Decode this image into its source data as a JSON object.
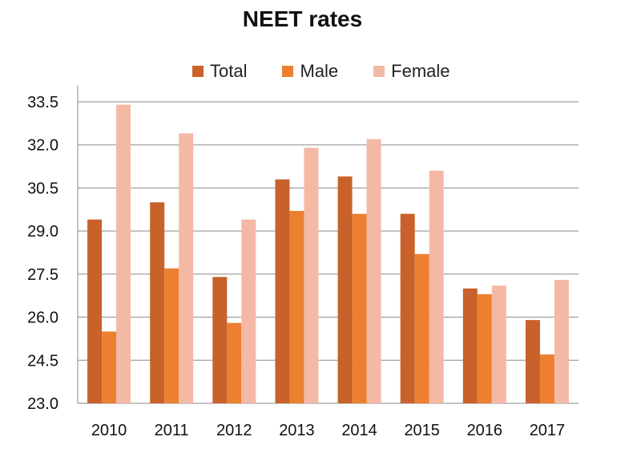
{
  "chart_data": {
    "type": "bar",
    "title": "NEET rates",
    "xlabel": "",
    "ylabel": "",
    "categories": [
      "2010",
      "2011",
      "2012",
      "2013",
      "2014",
      "2015",
      "2016",
      "2017"
    ],
    "series": [
      {
        "name": "Total",
        "color": "#c8622a",
        "values": [
          29.4,
          30.0,
          27.4,
          30.8,
          30.9,
          29.6,
          27.0,
          25.9
        ]
      },
      {
        "name": "Male",
        "color": "#ec8030",
        "values": [
          25.5,
          27.7,
          25.8,
          29.7,
          29.6,
          28.2,
          26.8,
          24.7
        ]
      },
      {
        "name": "Female",
        "color": "#f4b9a5",
        "values": [
          33.4,
          32.4,
          29.4,
          31.9,
          32.2,
          31.1,
          27.1,
          27.3
        ]
      }
    ],
    "ylim": [
      23.0,
      33.5
    ],
    "yticks": [
      "23.0",
      "24.5",
      "26.0",
      "27.5",
      "29.0",
      "30.5",
      "32.0",
      "33.5"
    ],
    "grid": true,
    "legend": "top"
  }
}
